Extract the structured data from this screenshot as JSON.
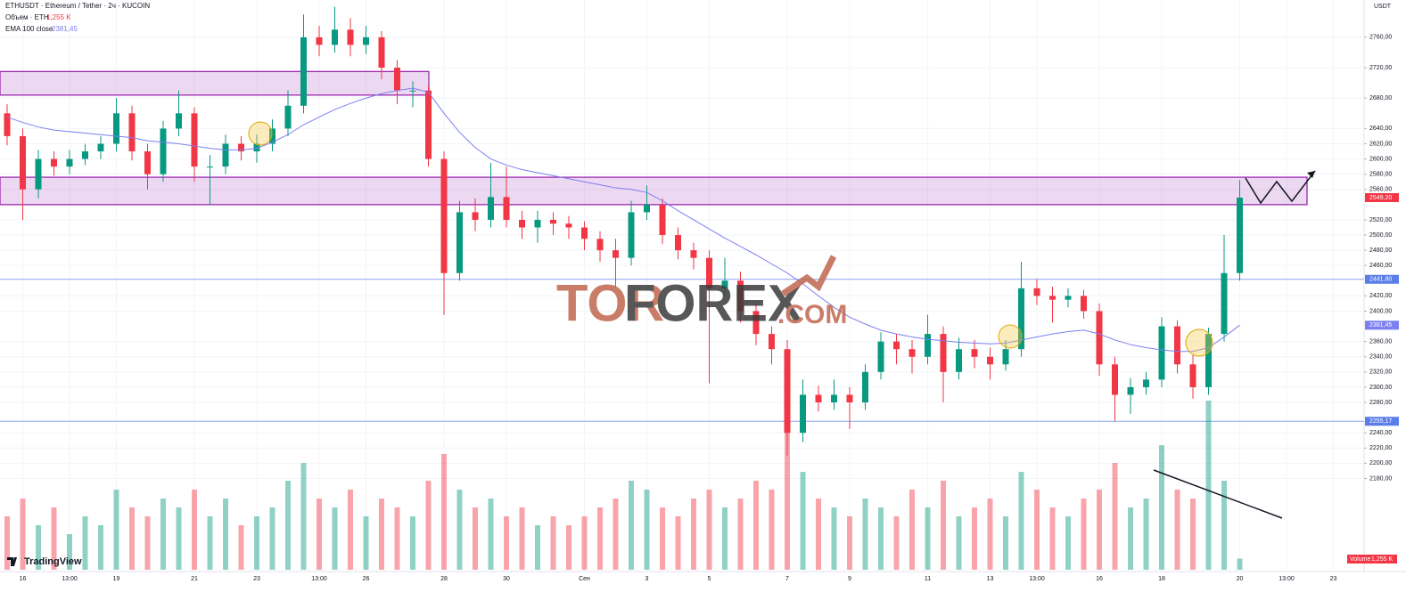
{
  "chart_data": {
    "type": "candlestick",
    "title": "ETHUSDT · Ethereum / Tether · 2ч · KUCOIN",
    "volume_legend": "Объем · ETH",
    "volume_legend_value": "1,255 K",
    "ema_legend": "EMA 100 close",
    "ema_legend_value": "2381,45",
    "currency": "USDT",
    "brand": "TradingView",
    "watermark": [
      "TOR",
      "FOREX",
      ".COM"
    ],
    "volume_label": "Volume",
    "volume_last_label": "1,255 K",
    "up_color": "#089981",
    "down_color": "#f23645",
    "ema_color": "#7b7ff0",
    "zone_color": "#9c27b0",
    "grid": true,
    "categories": [
      null,
      "16",
      null,
      null,
      "13:00",
      null,
      null,
      "19",
      null,
      null,
      null,
      null,
      "21",
      null,
      null,
      null,
      "23",
      null,
      null,
      null,
      "13:00",
      null,
      null,
      "26",
      null,
      null,
      null,
      null,
      "28",
      null,
      null,
      null,
      "30",
      null,
      null,
      null,
      null,
      "Сен",
      null,
      null,
      null,
      "3",
      null,
      null,
      null,
      "5",
      null,
      null,
      null,
      null,
      "7",
      null,
      null,
      null,
      "9",
      null,
      null,
      null,
      null,
      "11",
      null,
      null,
      null,
      "13",
      null,
      null,
      "13:00",
      null,
      null,
      null,
      "16",
      null,
      null,
      null,
      "18",
      null,
      null,
      null,
      null,
      "20",
      null,
      null,
      "13:00",
      null,
      null,
      "23",
      null
    ],
    "open": [
      2660,
      2630,
      2560,
      2600,
      2590,
      2600,
      2610,
      2620,
      2660,
      2610,
      2580,
      2640,
      2660,
      2590,
      2590,
      2620,
      2610,
      2620,
      2640,
      2670,
      2760,
      2750,
      2770,
      2750,
      2760,
      2720,
      2690,
      2690,
      2600,
      2450,
      2530,
      2520,
      2550,
      2520,
      2510,
      2520,
      2515,
      2510,
      2495,
      2480,
      2470,
      2530,
      2540,
      2500,
      2480,
      2470,
      2430,
      2440,
      2400,
      2370,
      2350,
      2240,
      2290,
      2280,
      2290,
      2280,
      2320,
      2360,
      2350,
      2340,
      2370,
      2320,
      2350,
      2340,
      2330,
      2350,
      2430,
      2420,
      2415,
      2420,
      2400,
      2330,
      2290,
      2300,
      2310,
      2380,
      2330,
      2300,
      2370,
      2450,
      null,
      null,
      null,
      null,
      null,
      null,
      null
    ],
    "high": [
      2672,
      2640,
      2612,
      2610,
      2612,
      2620,
      2630,
      2680,
      2670,
      2620,
      2650,
      2690,
      2668,
      2605,
      2632,
      2630,
      2632,
      2652,
      2690,
      2790,
      2775,
      2800,
      2785,
      2775,
      2768,
      2730,
      2702,
      2695,
      2610,
      2545,
      2548,
      2595,
      2590,
      2532,
      2532,
      2530,
      2525,
      2518,
      2505,
      2495,
      2545,
      2565,
      2548,
      2510,
      2490,
      2480,
      2470,
      2452,
      2410,
      2380,
      2362,
      2310,
      2302,
      2310,
      2300,
      2330,
      2372,
      2370,
      2362,
      2395,
      2380,
      2365,
      2362,
      2352,
      2362,
      2465,
      2442,
      2432,
      2430,
      2428,
      2410,
      2340,
      2312,
      2320,
      2392,
      2388,
      2342,
      2378,
      2500,
      2572,
      null,
      null,
      null,
      null,
      null,
      null,
      null
    ],
    "low": [
      2618,
      2520,
      2548,
      2578,
      2580,
      2592,
      2600,
      2610,
      2598,
      2560,
      2570,
      2630,
      2570,
      2540,
      2580,
      2598,
      2595,
      2610,
      2630,
      2660,
      2735,
      2740,
      2735,
      2738,
      2705,
      2672,
      2668,
      2590,
      2395,
      2440,
      2505,
      2510,
      2510,
      2495,
      2490,
      2500,
      2495,
      2480,
      2465,
      2430,
      2460,
      2520,
      2488,
      2468,
      2455,
      2305,
      2420,
      2385,
      2355,
      2330,
      2210,
      2228,
      2268,
      2270,
      2245,
      2270,
      2310,
      2330,
      2318,
      2330,
      2280,
      2310,
      2325,
      2310,
      2322,
      2340,
      2408,
      2385,
      2405,
      2390,
      2315,
      2255,
      2265,
      2290,
      2300,
      2318,
      2285,
      2290,
      2360,
      2440,
      null,
      null,
      null,
      null,
      null,
      null,
      null
    ],
    "close": [
      2630,
      2560,
      2600,
      2590,
      2600,
      2610,
      2620,
      2660,
      2610,
      2580,
      2640,
      2660,
      2590,
      2590,
      2620,
      2610,
      2620,
      2640,
      2670,
      2760,
      2750,
      2770,
      2750,
      2760,
      2720,
      2690,
      2690,
      2600,
      2450,
      2530,
      2520,
      2550,
      2520,
      2510,
      2520,
      2515,
      2510,
      2495,
      2480,
      2470,
      2530,
      2540,
      2500,
      2480,
      2470,
      2430,
      2440,
      2400,
      2370,
      2350,
      2240,
      2290,
      2280,
      2290,
      2280,
      2320,
      2360,
      2350,
      2340,
      2370,
      2320,
      2350,
      2340,
      2330,
      2350,
      2430,
      2420,
      2415,
      2420,
      2400,
      2330,
      2290,
      2300,
      2310,
      2380,
      2330,
      2300,
      2370,
      2450,
      2549.2,
      null,
      null,
      null,
      null,
      null,
      null,
      null
    ],
    "volume": [
      6,
      8,
      5,
      7,
      4,
      6,
      5,
      9,
      7,
      6,
      8,
      7,
      9,
      6,
      8,
      5,
      6,
      7,
      10,
      12,
      8,
      7,
      9,
      6,
      8,
      7,
      6,
      10,
      13,
      9,
      7,
      8,
      6,
      7,
      5,
      6,
      5,
      6,
      7,
      8,
      10,
      9,
      7,
      6,
      8,
      9,
      7,
      8,
      10,
      9,
      18,
      11,
      8,
      7,
      6,
      8,
      7,
      6,
      9,
      7,
      10,
      6,
      7,
      8,
      6,
      11,
      9,
      7,
      6,
      8,
      9,
      12,
      7,
      8,
      14,
      9,
      8,
      19,
      10,
      1.255,
      null,
      null,
      null,
      null,
      null,
      null,
      null
    ],
    "ema": [
      2655,
      2648,
      2642,
      2638,
      2636,
      2634,
      2632,
      2630,
      2628,
      2624,
      2622,
      2620,
      2617,
      2614,
      2612,
      2612,
      2614,
      2622,
      2632,
      2645,
      2655,
      2665,
      2673,
      2680,
      2686,
      2690,
      2693,
      2688,
      2660,
      2635,
      2615,
      2600,
      2592,
      2586,
      2582,
      2578,
      2574,
      2570,
      2566,
      2562,
      2560,
      2556,
      2545,
      2532,
      2520,
      2508,
      2496,
      2485,
      2474,
      2462,
      2450,
      2436,
      2420,
      2405,
      2392,
      2383,
      2375,
      2370,
      2366,
      2363,
      2361,
      2359,
      2358,
      2357,
      2358,
      2362,
      2366,
      2370,
      2373,
      2375,
      2370,
      2362,
      2356,
      2352,
      2349,
      2347,
      2347,
      2352,
      2366,
      2381.45,
      null,
      null,
      null,
      null,
      null,
      null,
      null
    ],
    "ylim": [
      2060,
      2809
    ],
    "volume_ylim": [
      0,
      20
    ],
    "yticks": [
      {
        "value": 2760,
        "label": "2760,00"
      },
      {
        "value": 2720,
        "label": "2720,00"
      },
      {
        "value": 2680,
        "label": "2680,00"
      },
      {
        "value": 2640,
        "label": "2640,00"
      },
      {
        "value": 2620,
        "label": "2620,00"
      },
      {
        "value": 2600,
        "label": "2600,00"
      },
      {
        "value": 2580,
        "label": "2580,00"
      },
      {
        "value": 2560,
        "label": "2560,00"
      },
      {
        "value": 2520,
        "label": "2520,00"
      },
      {
        "value": 2500,
        "label": "2500,00"
      },
      {
        "value": 2480,
        "label": "2480,00"
      },
      {
        "value": 2460,
        "label": "2460,00"
      },
      {
        "value": 2420,
        "label": "2420,00"
      },
      {
        "value": 2400,
        "label": "2400,00"
      },
      {
        "value": 2360,
        "label": "2360,00"
      },
      {
        "value": 2340,
        "label": "2340,00"
      },
      {
        "value": 2320,
        "label": "2320,00"
      },
      {
        "value": 2300,
        "label": "2300,00"
      },
      {
        "value": 2280,
        "label": "2280,00"
      },
      {
        "value": 2240,
        "label": "2240,00"
      },
      {
        "value": 2220,
        "label": "2220,00"
      },
      {
        "value": 2200,
        "label": "2200,00"
      },
      {
        "value": 2180,
        "label": "2180,00"
      }
    ],
    "zones": [
      [
        2715,
        2684
      ],
      [
        2576,
        2540
      ]
    ],
    "price_labels": [
      {
        "value": 2549.2,
        "label": "2549,20",
        "color": "#f23645",
        "line": false
      },
      {
        "value": 2441.8,
        "label": "2441,80",
        "color": "#5b7de8",
        "line": true
      },
      {
        "value": 2381.45,
        "label": "2381,45",
        "color": "#7b7ff0",
        "line": false
      },
      {
        "value": 2255.17,
        "label": "2255,17",
        "color": "#5b7de8",
        "line": true
      }
    ]
  }
}
